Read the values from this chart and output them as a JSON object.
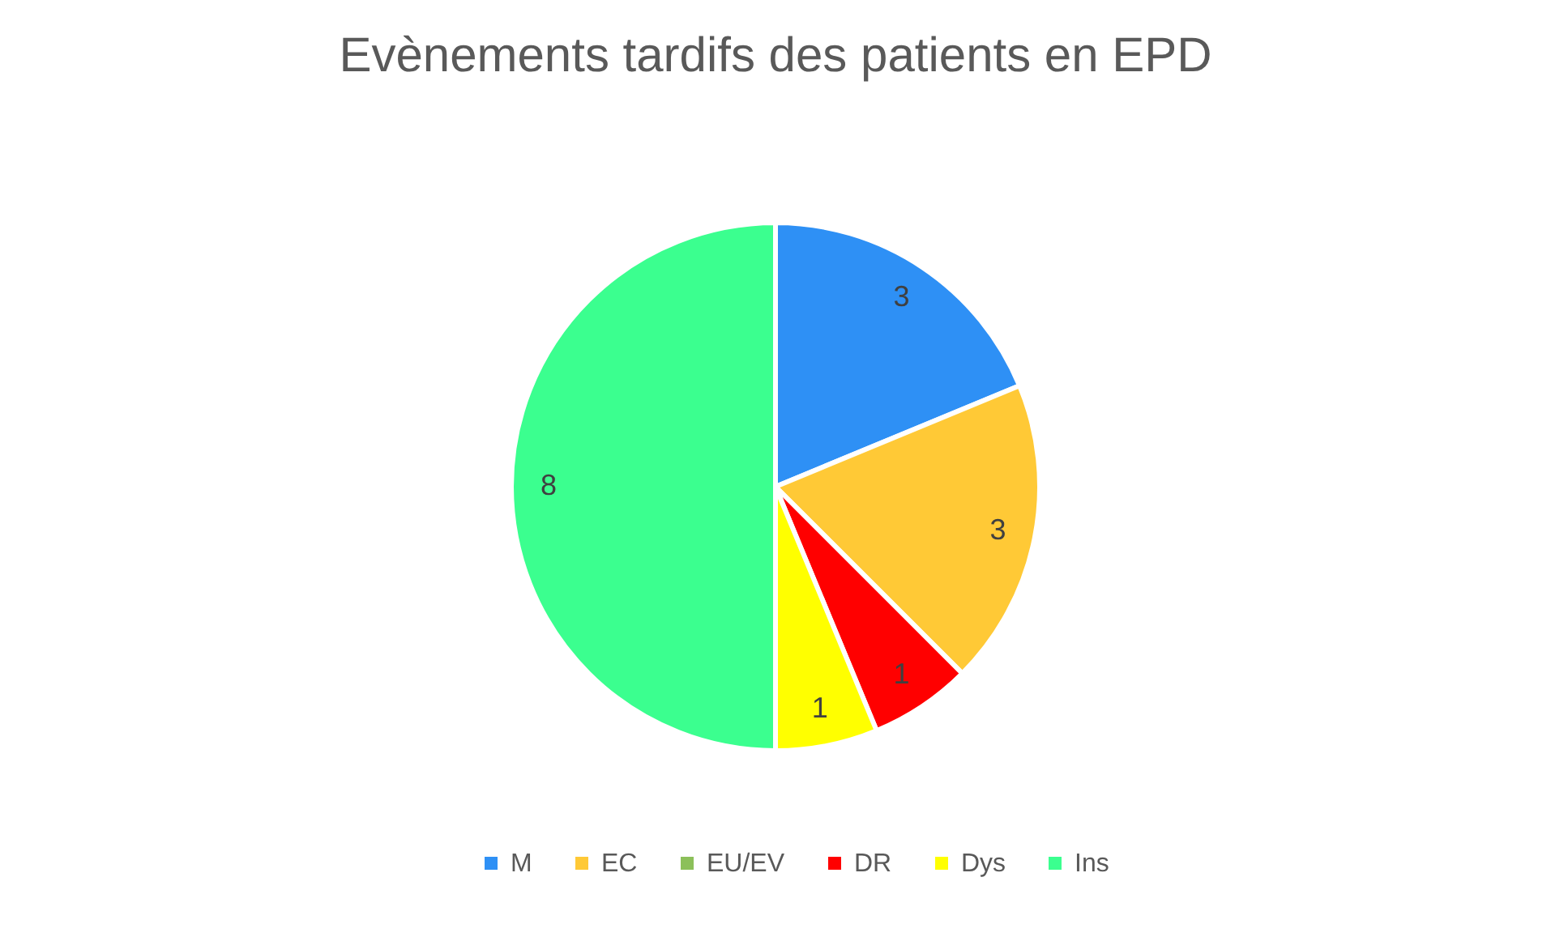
{
  "chart_data": {
    "type": "pie",
    "title": "Evènements tardifs des patients en EPD",
    "categories": [
      "M",
      "EC",
      "EU/EV",
      "DR",
      "Dys",
      "Ins"
    ],
    "values": [
      3,
      3,
      0,
      1,
      1,
      8
    ],
    "colors": [
      "#2e90f5",
      "#ffc936",
      "#8cc05a",
      "#ff0000",
      "#ffff00",
      "#3bff8f"
    ],
    "value_labels": [
      "3",
      "3",
      null,
      "1",
      "1",
      "8"
    ],
    "legend": "bottom"
  }
}
